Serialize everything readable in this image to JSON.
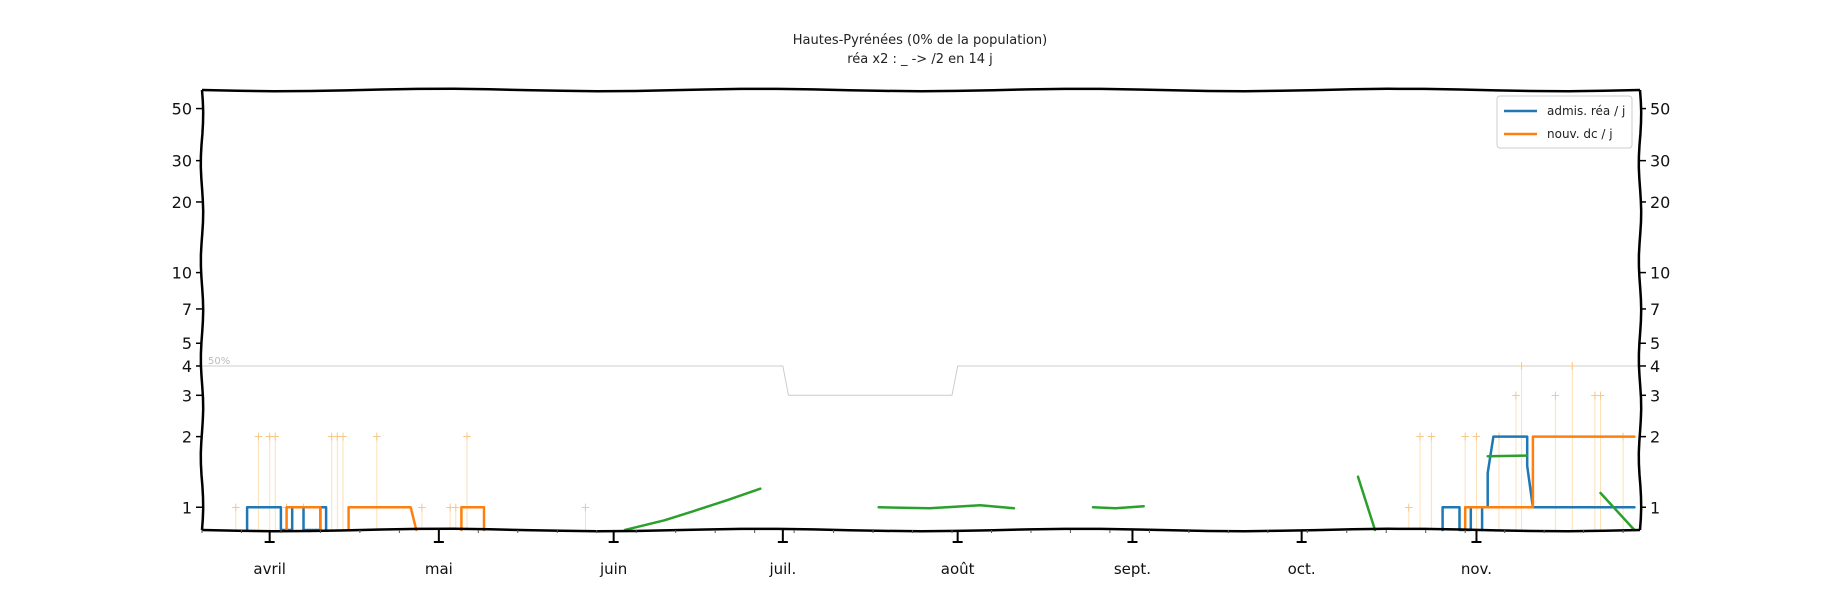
{
  "chart_data": {
    "type": "line",
    "title": "Hautes-Pyrénées (0% de la population)",
    "subtitle": "réa x2 : _ -> /2 en 14 j",
    "xlabel": "",
    "ylabel": "",
    "y_scale": "log",
    "ylim": [
      0.8,
      60
    ],
    "x_range": [
      "2020-03-20",
      "2020-11-30"
    ],
    "grid": false,
    "legend_position": "top-right",
    "yticks": [
      1,
      2,
      3,
      4,
      5,
      7,
      10,
      20,
      30,
      50
    ],
    "ytick_labels": [
      "1",
      "2",
      "3",
      "4",
      "5",
      "7",
      "10",
      "20",
      "30",
      "50"
    ],
    "xticks": [
      {
        "date": "2020-04-01",
        "label": "avril"
      },
      {
        "date": "2020-05-01",
        "label": "mai"
      },
      {
        "date": "2020-06-01",
        "label": "juin"
      },
      {
        "date": "2020-07-01",
        "label": "juil."
      },
      {
        "date": "2020-08-01",
        "label": "août"
      },
      {
        "date": "2020-09-01",
        "label": "sept."
      },
      {
        "date": "2020-10-01",
        "label": "oct."
      },
      {
        "date": "2020-11-01",
        "label": "nov."
      }
    ],
    "reference": {
      "label": "50%",
      "color": "#cccccc",
      "points": [
        {
          "x": "2020-03-20",
          "y": 4
        },
        {
          "x": "2020-07-01",
          "y": 4
        },
        {
          "x": "2020-07-02",
          "y": 3
        },
        {
          "x": "2020-07-31",
          "y": 3
        },
        {
          "x": "2020-08-01",
          "y": 4
        },
        {
          "x": "2020-11-30",
          "y": 4
        }
      ]
    },
    "series": [
      {
        "name": "admis. réa / j",
        "color": "#1f77b4",
        "points": [
          {
            "x": "2020-03-28",
            "y": 0.8
          },
          {
            "x": "2020-03-28",
            "y": 1
          },
          {
            "x": "2020-04-03",
            "y": 1
          },
          {
            "x": "2020-04-03",
            "y": 0.8
          },
          {
            "x": "2020-04-05",
            "y": 0.8
          },
          {
            "x": "2020-04-05",
            "y": 1
          },
          {
            "x": "2020-04-07",
            "y": 1
          },
          {
            "x": "2020-04-07",
            "y": 0.8
          },
          {
            "x": "2020-04-10",
            "y": 0.8
          },
          {
            "x": "2020-04-10",
            "y": 1
          },
          {
            "x": "2020-04-11",
            "y": 1
          },
          {
            "x": "2020-04-11",
            "y": 0.8
          },
          {
            "x": null,
            "y": null
          },
          {
            "x": "2020-10-26",
            "y": 0.8
          },
          {
            "x": "2020-10-26",
            "y": 1
          },
          {
            "x": "2020-10-29",
            "y": 1
          },
          {
            "x": "2020-10-29",
            "y": 0.8
          },
          {
            "x": "2020-10-31",
            "y": 0.8
          },
          {
            "x": "2020-10-31",
            "y": 1
          },
          {
            "x": "2020-11-02",
            "y": 1
          },
          {
            "x": "2020-11-02",
            "y": 0.8
          },
          {
            "x": null,
            "y": null
          },
          {
            "x": "2020-11-03",
            "y": 1
          },
          {
            "x": "2020-11-03",
            "y": 1.4
          },
          {
            "x": "2020-11-04",
            "y": 2
          },
          {
            "x": "2020-11-10",
            "y": 2
          },
          {
            "x": "2020-11-10",
            "y": 1.5
          },
          {
            "x": "2020-11-11",
            "y": 1
          },
          {
            "x": "2020-11-20",
            "y": 1
          },
          {
            "x": "2020-11-29",
            "y": 1
          }
        ]
      },
      {
        "name": "nouv. dc / j",
        "color": "#ff7f0e",
        "points": [
          {
            "x": "2020-04-04",
            "y": 0.8
          },
          {
            "x": "2020-04-04",
            "y": 1
          },
          {
            "x": "2020-04-10",
            "y": 1
          },
          {
            "x": "2020-04-10",
            "y": 0.8
          },
          {
            "x": null,
            "y": null
          },
          {
            "x": "2020-04-15",
            "y": 0.8
          },
          {
            "x": "2020-04-15",
            "y": 1
          },
          {
            "x": "2020-04-26",
            "y": 1
          },
          {
            "x": "2020-04-27",
            "y": 0.8
          },
          {
            "x": null,
            "y": null
          },
          {
            "x": "2020-05-05",
            "y": 0.8
          },
          {
            "x": "2020-05-05",
            "y": 1
          },
          {
            "x": "2020-05-09",
            "y": 1
          },
          {
            "x": "2020-05-09",
            "y": 0.8
          },
          {
            "x": null,
            "y": null
          },
          {
            "x": "2020-10-30",
            "y": 0.8
          },
          {
            "x": "2020-10-30",
            "y": 1
          },
          {
            "x": "2020-11-11",
            "y": 1
          },
          {
            "x": "2020-11-11",
            "y": 2
          },
          {
            "x": "2020-11-29",
            "y": 2
          }
        ]
      },
      {
        "name": "",
        "color": "#2ca02c",
        "points": [
          {
            "x": "2020-06-03",
            "y": 0.8
          },
          {
            "x": "2020-06-10",
            "y": 0.88
          },
          {
            "x": "2020-06-15",
            "y": 0.96
          },
          {
            "x": "2020-06-21",
            "y": 1.07
          },
          {
            "x": "2020-06-27",
            "y": 1.2
          },
          {
            "x": null,
            "y": null
          },
          {
            "x": "2020-07-18",
            "y": 1
          },
          {
            "x": "2020-07-27",
            "y": 0.99
          },
          {
            "x": "2020-08-05",
            "y": 1.02
          },
          {
            "x": "2020-08-11",
            "y": 0.99
          },
          {
            "x": null,
            "y": null
          },
          {
            "x": "2020-08-25",
            "y": 1
          },
          {
            "x": "2020-08-29",
            "y": 0.99
          },
          {
            "x": "2020-09-03",
            "y": 1.01
          },
          {
            "x": null,
            "y": null
          },
          {
            "x": "2020-10-11",
            "y": 1.35
          },
          {
            "x": "2020-10-14",
            "y": 0.8
          },
          {
            "x": null,
            "y": null
          },
          {
            "x": "2020-11-03",
            "y": 1.65
          },
          {
            "x": "2020-11-10",
            "y": 1.66
          },
          {
            "x": null,
            "y": null
          },
          {
            "x": "2020-11-23",
            "y": 1.15
          },
          {
            "x": "2020-11-29",
            "y": 0.8
          }
        ]
      }
    ],
    "markers": {
      "color": "#fde0b6",
      "symbol": "+",
      "points": [
        {
          "x": "2020-03-26",
          "y": 1
        },
        {
          "x": "2020-03-30",
          "y": 2
        },
        {
          "x": "2020-04-01",
          "y": 2
        },
        {
          "x": "2020-04-02",
          "y": 2
        },
        {
          "x": "2020-04-04",
          "y": 1
        },
        {
          "x": "2020-04-07",
          "y": 1
        },
        {
          "x": "2020-04-12",
          "y": 2
        },
        {
          "x": "2020-04-13",
          "y": 2
        },
        {
          "x": "2020-04-14",
          "y": 2
        },
        {
          "x": "2020-04-20",
          "y": 2
        },
        {
          "x": "2020-04-28",
          "y": 1
        },
        {
          "x": "2020-05-03",
          "y": 1
        },
        {
          "x": "2020-05-04",
          "y": 1
        },
        {
          "x": "2020-05-06",
          "y": 2
        },
        {
          "x": "2020-05-27",
          "y": 1
        },
        {
          "x": "2020-10-20",
          "y": 1
        },
        {
          "x": "2020-10-22",
          "y": 2
        },
        {
          "x": "2020-10-24",
          "y": 2
        },
        {
          "x": "2020-10-30",
          "y": 2
        },
        {
          "x": "2020-11-01",
          "y": 2
        },
        {
          "x": "2020-11-05",
          "y": 2
        },
        {
          "x": "2020-11-08",
          "y": 3
        },
        {
          "x": "2020-11-09",
          "y": 4
        },
        {
          "x": "2020-11-15",
          "y": 3
        },
        {
          "x": "2020-11-18",
          "y": 4
        },
        {
          "x": "2020-11-22",
          "y": 3
        },
        {
          "x": "2020-11-23",
          "y": 3
        },
        {
          "x": "2020-11-27",
          "y": 2
        }
      ]
    }
  }
}
